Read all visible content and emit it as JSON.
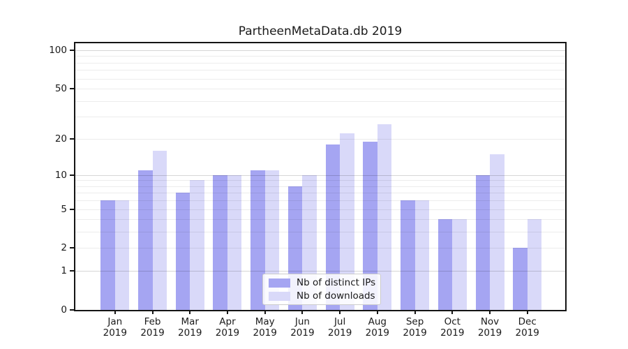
{
  "title": "PartheenMetaData.db 2019",
  "chart_data": {
    "type": "bar",
    "title": "PartheenMetaData.db 2019",
    "categories": [
      "Jan 2019",
      "Feb 2019",
      "Mar 2019",
      "Apr 2019",
      "May 2019",
      "Jun 2019",
      "Jul 2019",
      "Aug 2019",
      "Sep 2019",
      "Oct 2019",
      "Nov 2019",
      "Dec 2019"
    ],
    "x_months": [
      "Jan",
      "Feb",
      "Mar",
      "Apr",
      "May",
      "Jun",
      "Jul",
      "Aug",
      "Sep",
      "Oct",
      "Nov",
      "Dec"
    ],
    "x_year": "2019",
    "series": [
      {
        "name": "Nb of distinct IPs",
        "slug": "distinct-ips",
        "color": "#a5a5f2",
        "values": [
          6,
          11,
          7,
          10,
          11,
          8,
          18,
          19,
          6,
          4,
          10,
          2
        ]
      },
      {
        "name": "Nb of downloads",
        "slug": "downloads",
        "color": "#d9d9f9",
        "values": [
          6,
          16,
          9,
          10,
          11,
          10,
          22,
          26,
          6,
          4,
          15,
          4
        ]
      }
    ],
    "yscale": "log1p",
    "ylim": [
      0,
      113
    ],
    "y_ticks": [
      0,
      1,
      2,
      5,
      10,
      20,
      50,
      100
    ],
    "y_major_gridlines": [
      1,
      10,
      100
    ],
    "y_minor_gridlines": [
      2,
      3,
      4,
      5,
      6,
      7,
      8,
      9,
      20,
      30,
      40,
      50,
      60,
      70,
      80,
      90
    ],
    "grid": true,
    "legend_position": "lower center",
    "xlabel": "",
    "ylabel": ""
  },
  "legend": {
    "items": [
      {
        "label": "Nb of distinct IPs",
        "color": "#a5a5f2"
      },
      {
        "label": "Nb of downloads",
        "color": "#d9d9f9"
      }
    ]
  },
  "colors": {
    "distinct_ips_bar": "#a5a5f2",
    "downloads_bar": "#d9d9f9",
    "frame": "#141414",
    "text": "#1a1a1a"
  }
}
